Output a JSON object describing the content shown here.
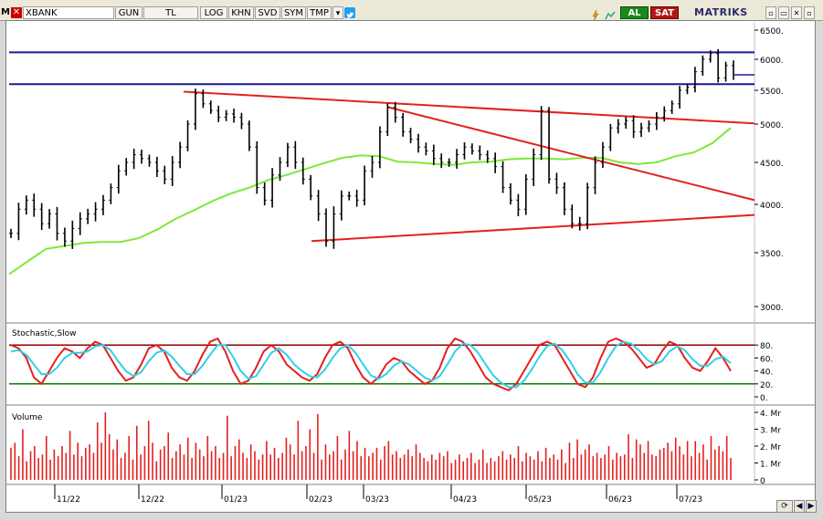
{
  "toolbar": {
    "logo": "M",
    "close_glyph": "✕",
    "symbol": "XBANK",
    "buttons": [
      "GUN",
      "TL",
      "LOG",
      "KHN",
      "SVD",
      "SYM",
      "TMP"
    ],
    "dropdown_glyph": "▾",
    "al_label": "AL",
    "sat_label": "SAT",
    "brand": "MATRIKS",
    "window_controls": [
      "▫",
      "▭",
      "✕"
    ]
  },
  "colors": {
    "price_bars": "#000000",
    "moving_average": "#7ee83a",
    "trend_lines": "#e32020",
    "horizontal_lines": "#1a1a9a",
    "stoch_k": "#e32020",
    "stoch_d": "#2fd0e8",
    "stoch_upper": "#8b0000",
    "stoch_lower": "#0a7a0a",
    "volume_bars": "#e32020"
  },
  "chart_data": [
    {
      "type": "ohlc",
      "panel": "price",
      "price_axis_labels": [
        "6500.",
        "6000.",
        "5500.",
        "5000.",
        "4500.",
        "4000.",
        "3500.",
        "3000."
      ],
      "horizontal_levels": [
        6120,
        5600
      ],
      "x_labels": [
        "11/22",
        "12/22",
        "01/23",
        "02/23",
        "03/23",
        "04/23",
        "05/23",
        "06/23",
        "07/23"
      ],
      "closes": [
        3700,
        3950,
        4050,
        3950,
        3800,
        3900,
        3700,
        3620,
        3750,
        3850,
        3900,
        3950,
        4050,
        4200,
        4400,
        4500,
        4600,
        4550,
        4500,
        4400,
        4300,
        4500,
        4700,
        5000,
        5450,
        5300,
        5200,
        5100,
        5150,
        5100,
        5000,
        4700,
        4200,
        4050,
        4350,
        4500,
        4700,
        4500,
        4300,
        4100,
        3900,
        3620,
        3900,
        4100,
        4100,
        4050,
        4400,
        4500,
        4900,
        5250,
        5100,
        4900,
        4800,
        4700,
        4650,
        4550,
        4500,
        4500,
        4600,
        4700,
        4650,
        4600,
        4550,
        4450,
        4200,
        4050,
        3950,
        4300,
        4600,
        5200,
        4300,
        4200,
        3950,
        3800,
        3800,
        4200,
        4500,
        4700,
        4950,
        5000,
        5050,
        4900,
        4950,
        5000,
        5100,
        5200,
        5300,
        5500,
        5550,
        5800,
        6000,
        6100,
        5700,
        5900,
        5750
      ],
      "moving_average": [
        3300,
        3420,
        3540,
        3570,
        3600,
        3610,
        3610,
        3650,
        3740,
        3850,
        3940,
        4040,
        4130,
        4200,
        4290,
        4350,
        4420,
        4490,
        4560,
        4590,
        4580,
        4510,
        4500,
        4480,
        4470,
        4500,
        4510,
        4540,
        4550,
        4550,
        4540,
        4560,
        4560,
        4500,
        4480,
        4500,
        4580,
        4630,
        4750,
        4950
      ],
      "trend_lines": [
        {
          "from": [
            "12/22 end",
            5480
          ],
          "to": [
            "07/23 end",
            5010
          ]
        },
        {
          "from": [
            "03/23",
            5250
          ],
          "to": [
            "07/23 end",
            4050
          ]
        },
        {
          "from": [
            "02/23",
            3620
          ],
          "to": [
            "07/23 end",
            3890
          ]
        }
      ]
    },
    {
      "type": "line",
      "panel": "stochastic",
      "title": "Stochastic,Slow",
      "y_labels": [
        "80.",
        "60.",
        "40.",
        "20.",
        "0."
      ],
      "upper_level": 80,
      "lower_level": 20,
      "series": [
        {
          "name": "%K",
          "values": [
            80,
            75,
            60,
            30,
            20,
            40,
            60,
            75,
            70,
            60,
            75,
            85,
            80,
            60,
            40,
            25,
            30,
            50,
            75,
            80,
            70,
            45,
            30,
            25,
            40,
            65,
            85,
            90,
            70,
            40,
            20,
            25,
            45,
            70,
            80,
            70,
            50,
            40,
            30,
            25,
            35,
            60,
            80,
            85,
            75,
            50,
            30,
            20,
            30,
            50,
            60,
            55,
            40,
            30,
            20,
            25,
            45,
            75,
            90,
            85,
            70,
            50,
            30,
            20,
            15,
            10,
            20,
            40,
            60,
            80,
            85,
            80,
            60,
            40,
            20,
            15,
            30,
            60,
            85,
            90,
            85,
            75,
            60,
            45,
            50,
            70,
            85,
            80,
            60,
            45,
            40,
            55,
            75,
            60,
            40
          ]
        },
        {
          "name": "%D",
          "values": [
            70,
            72,
            65,
            50,
            35,
            35,
            45,
            60,
            68,
            68,
            70,
            78,
            80,
            72,
            55,
            40,
            32,
            38,
            55,
            68,
            72,
            62,
            48,
            35,
            35,
            48,
            65,
            80,
            80,
            62,
            40,
            28,
            32,
            50,
            68,
            75,
            65,
            50,
            40,
            32,
            30,
            42,
            60,
            75,
            80,
            68,
            50,
            33,
            28,
            35,
            48,
            55,
            50,
            40,
            30,
            25,
            32,
            50,
            70,
            82,
            80,
            68,
            50,
            33,
            22,
            15,
            15,
            25,
            42,
            62,
            78,
            82,
            72,
            55,
            35,
            22,
            22,
            38,
            60,
            78,
            85,
            82,
            72,
            58,
            50,
            55,
            70,
            78,
            72,
            58,
            48,
            48,
            58,
            62,
            52
          ]
        }
      ]
    },
    {
      "type": "bar",
      "panel": "volume",
      "title": "Volume",
      "y_labels": [
        "4. Mr",
        "3. Mr",
        "2. Mr",
        "1. Mr",
        "0"
      ],
      "values": [
        1.9,
        2.2,
        1.4,
        3.0,
        1.1,
        1.7,
        2.0,
        1.3,
        1.5,
        2.6,
        1.2,
        1.8,
        1.4,
        2.0,
        1.6,
        2.9,
        1.5,
        2.2,
        1.4,
        1.9,
        2.1,
        1.6,
        3.4,
        2.2,
        4.0,
        2.7,
        1.8,
        2.4,
        1.3,
        1.6,
        2.6,
        1.2,
        3.2,
        1.5,
        2.0,
        3.5,
        2.2,
        1.1,
        1.8,
        2.0,
        2.8,
        1.3,
        1.7,
        2.1,
        1.5,
        2.5,
        1.3,
        2.2,
        1.8,
        1.4,
        2.6,
        1.7,
        2.0,
        1.3,
        1.6,
        3.8,
        1.4,
        2.0,
        2.4,
        1.6,
        1.3,
        2.1,
        1.7,
        1.2,
        1.5,
        2.3,
        1.5,
        1.9,
        1.3,
        1.6,
        2.5,
        2.1,
        1.5,
        3.5,
        1.7,
        2.0,
        3.0,
        1.6,
        3.9,
        1.2,
        2.1,
        1.5,
        1.7,
        2.6,
        1.2,
        1.8,
        2.9,
        1.7,
        2.3,
        1.4,
        1.9,
        1.4,
        1.6,
        1.9,
        1.2,
        2.0,
        2.3,
        1.5,
        1.7,
        1.3,
        1.5,
        1.8,
        1.4,
        2.1,
        1.6,
        1.3,
        1.1,
        1.5,
        1.2,
        1.6,
        1.4,
        1.7,
        1.0,
        1.2,
        1.5,
        1.1,
        1.3,
        1.6,
        1.0,
        1.2,
        1.8,
        1.0,
        1.3,
        1.1,
        1.4,
        1.7,
        1.2,
        1.5,
        1.3,
        2.0,
        1.1,
        1.6,
        1.4,
        1.2,
        1.7,
        1.1,
        1.9,
        1.3,
        1.5,
        1.2,
        1.8,
        1.0,
        2.2,
        1.3,
        2.4,
        1.5,
        1.8,
        2.1,
        1.4,
        1.6,
        1.3,
        1.5,
        2.0,
        1.2,
        1.6,
        1.4,
        1.5,
        2.7,
        1.3,
        2.4,
        2.1,
        1.6,
        2.3,
        1.5,
        1.4,
        1.8,
        1.9,
        2.2,
        1.7,
        2.5,
        2.0,
        1.5,
        2.3,
        1.4,
        2.3,
        1.6,
        2.1,
        1.2,
        2.6,
        1.8,
        2.0,
        1.7,
        2.6,
        1.3
      ]
    }
  ]
}
